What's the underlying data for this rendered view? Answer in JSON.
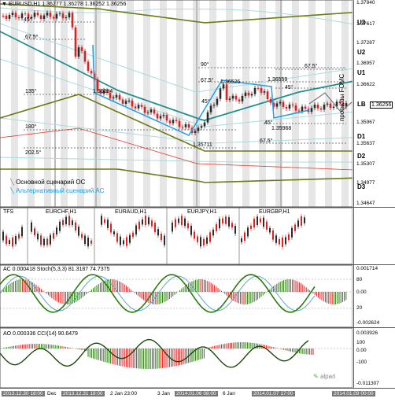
{
  "main_chart": {
    "symbol_label": "EURUSD,H1",
    "ohlc_label": "1.36277 1.36278 1.36252 1.36256",
    "fib_labels": [
      "45°",
      "67.5°",
      "135°",
      "180°",
      "202.5°",
      "90°",
      "67.5°",
      "45°",
      "45°",
      "67.5°",
      "45°",
      "67.5°"
    ],
    "price_labels": [
      "1.36294",
      "1.36526",
      "1.36559",
      "1.35968",
      "1.35711"
    ],
    "forecast_label": "прогнозы FOMC",
    "legend": {
      "main": "Основной сценарий ОС",
      "alt": "Альтернативный сценарий АС"
    },
    "levels": [
      "U3",
      "U2",
      "U1",
      "LB",
      "D1",
      "D2",
      "D3"
    ],
    "price_axis": [
      "1.37940",
      "1.37617",
      "1.37287",
      "1.36957",
      "1.36622",
      "1.36256",
      "1.35967",
      "1.35637",
      "1.35307",
      "1.34977",
      "1.34647"
    ],
    "current_price": "1.36256"
  },
  "subcharts": {
    "tfs_label": "TFS",
    "pairs": [
      "EURCHF,H1",
      "EURAUD,H1",
      "EURJPY,H1",
      "EURGBP,H1"
    ]
  },
  "ac_pane": {
    "label": "AC 0.000418  Stoch(5,3,3) 81.3187 74.7375",
    "axis": [
      "0.001714",
      "80",
      "0.00",
      "20",
      "-0.002624"
    ]
  },
  "ao_pane": {
    "label": "AO 0.000336  CCI(14) 90.6479",
    "axis": [
      "0.003926",
      "100",
      "0.00",
      "-100",
      "-0.011307"
    ]
  },
  "brand": "alpari",
  "time_axis": [
    {
      "t": "2013.12.30 18:00",
      "hl": true
    },
    {
      "t": "Dec",
      "hl": false
    },
    {
      "t": "2013.12.31 18:00",
      "hl": true
    },
    {
      "t": "2 Jan 23:00",
      "hl": false
    },
    {
      "t": "3 Jan",
      "hl": false
    },
    {
      "t": "2014.01.06 08:00",
      "hl": true
    },
    {
      "t": "6 Jan",
      "hl": false
    },
    {
      "t": "2014.01.07 17:00",
      "hl": true
    },
    {
      "t": "2014.01.09 00:00",
      "hl": true
    }
  ],
  "colors": {
    "teal": "#1f8f8f",
    "olive": "#6b7a16",
    "red": "#e83a2a",
    "blue": "#1aa0e8",
    "green": "#2a7a10",
    "bull": "#2a2a2a",
    "bear": "#e02020"
  }
}
